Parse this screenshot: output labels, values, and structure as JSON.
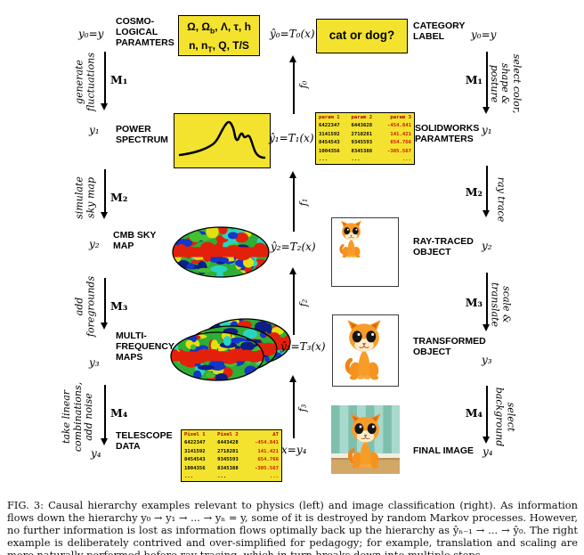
{
  "caption": "FIG. 3: Causal hierarchy examples relevant to physics (left) and image classification (right). As information flows down the hierarchy y₀ → y₁ → ... → yₙ = y, some of it is destroyed by random Markov processes. However, no further information is lost as information flows optimally back up the hierarchy as ŷₙ₋₁ → ... → ŷ₀. The right example is deliberately contrived and over-simplified for pedagogy; for example, translation and scaling are more naturally performed before ray tracing, which in turn breaks down into multiple steps.",
  "colors": {
    "box_yellow": "#f4e32e",
    "table_header_red": "#a40000",
    "table_value_red": "#cc1100",
    "cat_orange": "#f6921e",
    "cmb_green": "#2fae35",
    "cmb_red": "#e3210b",
    "cmb_blue": "#1636c8",
    "cmb_yellow": "#e3df12",
    "wall_dark": "#7fbfae",
    "wall_light": "#a7d9cc",
    "floor_tan": "#d2a868"
  },
  "physics": {
    "nodes": [
      {
        "var": "y₀=y",
        "label": "COSMO-\nLOGICAL\nPARAMTERS",
        "box_html": "Ω, Ω<sub>b</sub>, Λ, τ, h<br>n, n<sub>T</sub>, Q, T/S"
      },
      {
        "var": "y₁",
        "label": "POWER\nSPECTRUM"
      },
      {
        "var": "y₂",
        "label": "CMB SKY\nMAP"
      },
      {
        "var": "y₃",
        "label": "MULTI-\nFREQUENCY\nMAPS"
      },
      {
        "var": "y₄",
        "label": "TELESCOPE\nDATA"
      }
    ],
    "processes": [
      {
        "m": "M₁",
        "text": "generate\nfluctuations"
      },
      {
        "m": "M₂",
        "text": "simulate\nsky map"
      },
      {
        "m": "M₃",
        "text": "add\nforegrounds"
      },
      {
        "m": "M₄",
        "text": "take linear\ncombinations,\nadd noise"
      }
    ],
    "telescope_table": {
      "headers": [
        "Pixel 1",
        "Pixel 2",
        "∆T"
      ],
      "rows": [
        [
          "6422347",
          "6443428",
          "-454.841"
        ],
        [
          "3141592",
          "2718281",
          "141.421"
        ],
        [
          "8454543",
          "9345593",
          "654.766"
        ],
        [
          "1004356",
          "8345388",
          "-305.567"
        ],
        [
          "...",
          "...",
          "..."
        ]
      ]
    }
  },
  "inference": {
    "equations": [
      "ŷ₀=T₀(x)",
      "ŷ₁=T₁(x)",
      "ŷ₂=T₂(x)",
      "ŷ₃=T₃(x)"
    ],
    "input_equation": "x=y₄",
    "maps": [
      "f₀",
      "f₁",
      "f₂",
      "f₃"
    ]
  },
  "vision": {
    "nodes": [
      {
        "var": "y₀=y",
        "label": "CATEGORY\nLABEL",
        "box": "cat or dog?"
      },
      {
        "var": "y₁",
        "label": "SOLIDWORKS\nPARAMTERS"
      },
      {
        "var": "y₂",
        "label": "RAY-TRACED\nOBJECT"
      },
      {
        "var": "y₃",
        "label": "TRANSFORMED\nOBJECT"
      },
      {
        "var": "y₄",
        "label": "FINAL IMAGE"
      }
    ],
    "processes": [
      {
        "m": "M₁",
        "text": "select color,\nshape & posture"
      },
      {
        "m": "M₂",
        "text": "ray trace"
      },
      {
        "m": "M₃",
        "text": "scale & translate"
      },
      {
        "m": "M₄",
        "text": "select background"
      }
    ],
    "solidworks_table": {
      "headers": [
        "param 1",
        "param 2",
        "param 3"
      ],
      "rows": [
        [
          "6422347",
          "6443628",
          "-454.841"
        ],
        [
          "3141592",
          "2718281",
          "141.421"
        ],
        [
          "8454543",
          "9345593",
          "654.766"
        ],
        [
          "1004356",
          "8345388",
          "-305.567"
        ],
        [
          "...",
          "...",
          "..."
        ]
      ]
    }
  }
}
